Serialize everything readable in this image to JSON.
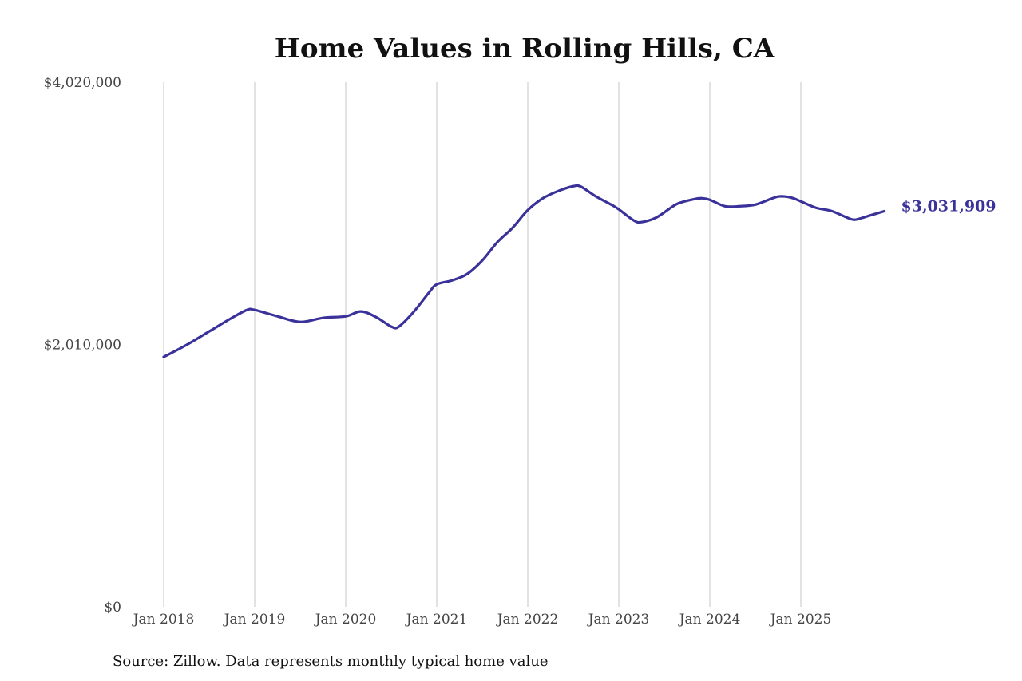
{
  "chart_data": {
    "type": "line",
    "title": "Home Values in Rolling Hills, CA",
    "xlabel": "",
    "ylabel": "",
    "ylim": [
      0,
      4020000
    ],
    "y_ticks": [
      {
        "value": 0,
        "label": "$0"
      },
      {
        "value": 2010000,
        "label": "$2,010,000"
      },
      {
        "value": 4020000,
        "label": "$4,020,000"
      }
    ],
    "x_ticks": [
      {
        "month": 0,
        "label": "Jan 2018"
      },
      {
        "month": 12,
        "label": "Jan 2019"
      },
      {
        "month": 24,
        "label": "Jan 2020"
      },
      {
        "month": 36,
        "label": "Jan 2021"
      },
      {
        "month": 48,
        "label": "Jan 2022"
      },
      {
        "month": 60,
        "label": "Jan 2023"
      },
      {
        "month": 72,
        "label": "Jan 2024"
      },
      {
        "month": 84,
        "label": "Jan 2025"
      }
    ],
    "grid": "vertical at x ticks",
    "line_color": "#3a329a",
    "series": [
      {
        "name": "Typical home value",
        "x_months_since_jan_2018": [
          0,
          3,
          6,
          9,
          11,
          12,
          15,
          18,
          21,
          24,
          26,
          28,
          30,
          31,
          33,
          35,
          36,
          38,
          40,
          42,
          44,
          46,
          48,
          50,
          52,
          54,
          55,
          57,
          59,
          60,
          62,
          63,
          65,
          67,
          68,
          70,
          71,
          72,
          74,
          76,
          78,
          80,
          81,
          82,
          83,
          84,
          86,
          88,
          90,
          91,
          92,
          93,
          95
        ],
        "values": [
          1914000,
          2006000,
          2110000,
          2214000,
          2275000,
          2275000,
          2226000,
          2183000,
          2214000,
          2226000,
          2263000,
          2220000,
          2147000,
          2147000,
          2263000,
          2410000,
          2471000,
          2501000,
          2550000,
          2654000,
          2795000,
          2905000,
          3040000,
          3131000,
          3186000,
          3223000,
          3220000,
          3144000,
          3082000,
          3046000,
          2960000,
          2948000,
          2985000,
          3064000,
          3095000,
          3125000,
          3131000,
          3119000,
          3070000,
          3070000,
          3082000,
          3125000,
          3144000,
          3144000,
          3131000,
          3107000,
          3058000,
          3034000,
          2985000,
          2966000,
          2979000,
          2997000,
          3031909
        ]
      }
    ],
    "end_label": "$3,031,909",
    "source": "Source: Zillow. Data represents monthly typical home value"
  }
}
